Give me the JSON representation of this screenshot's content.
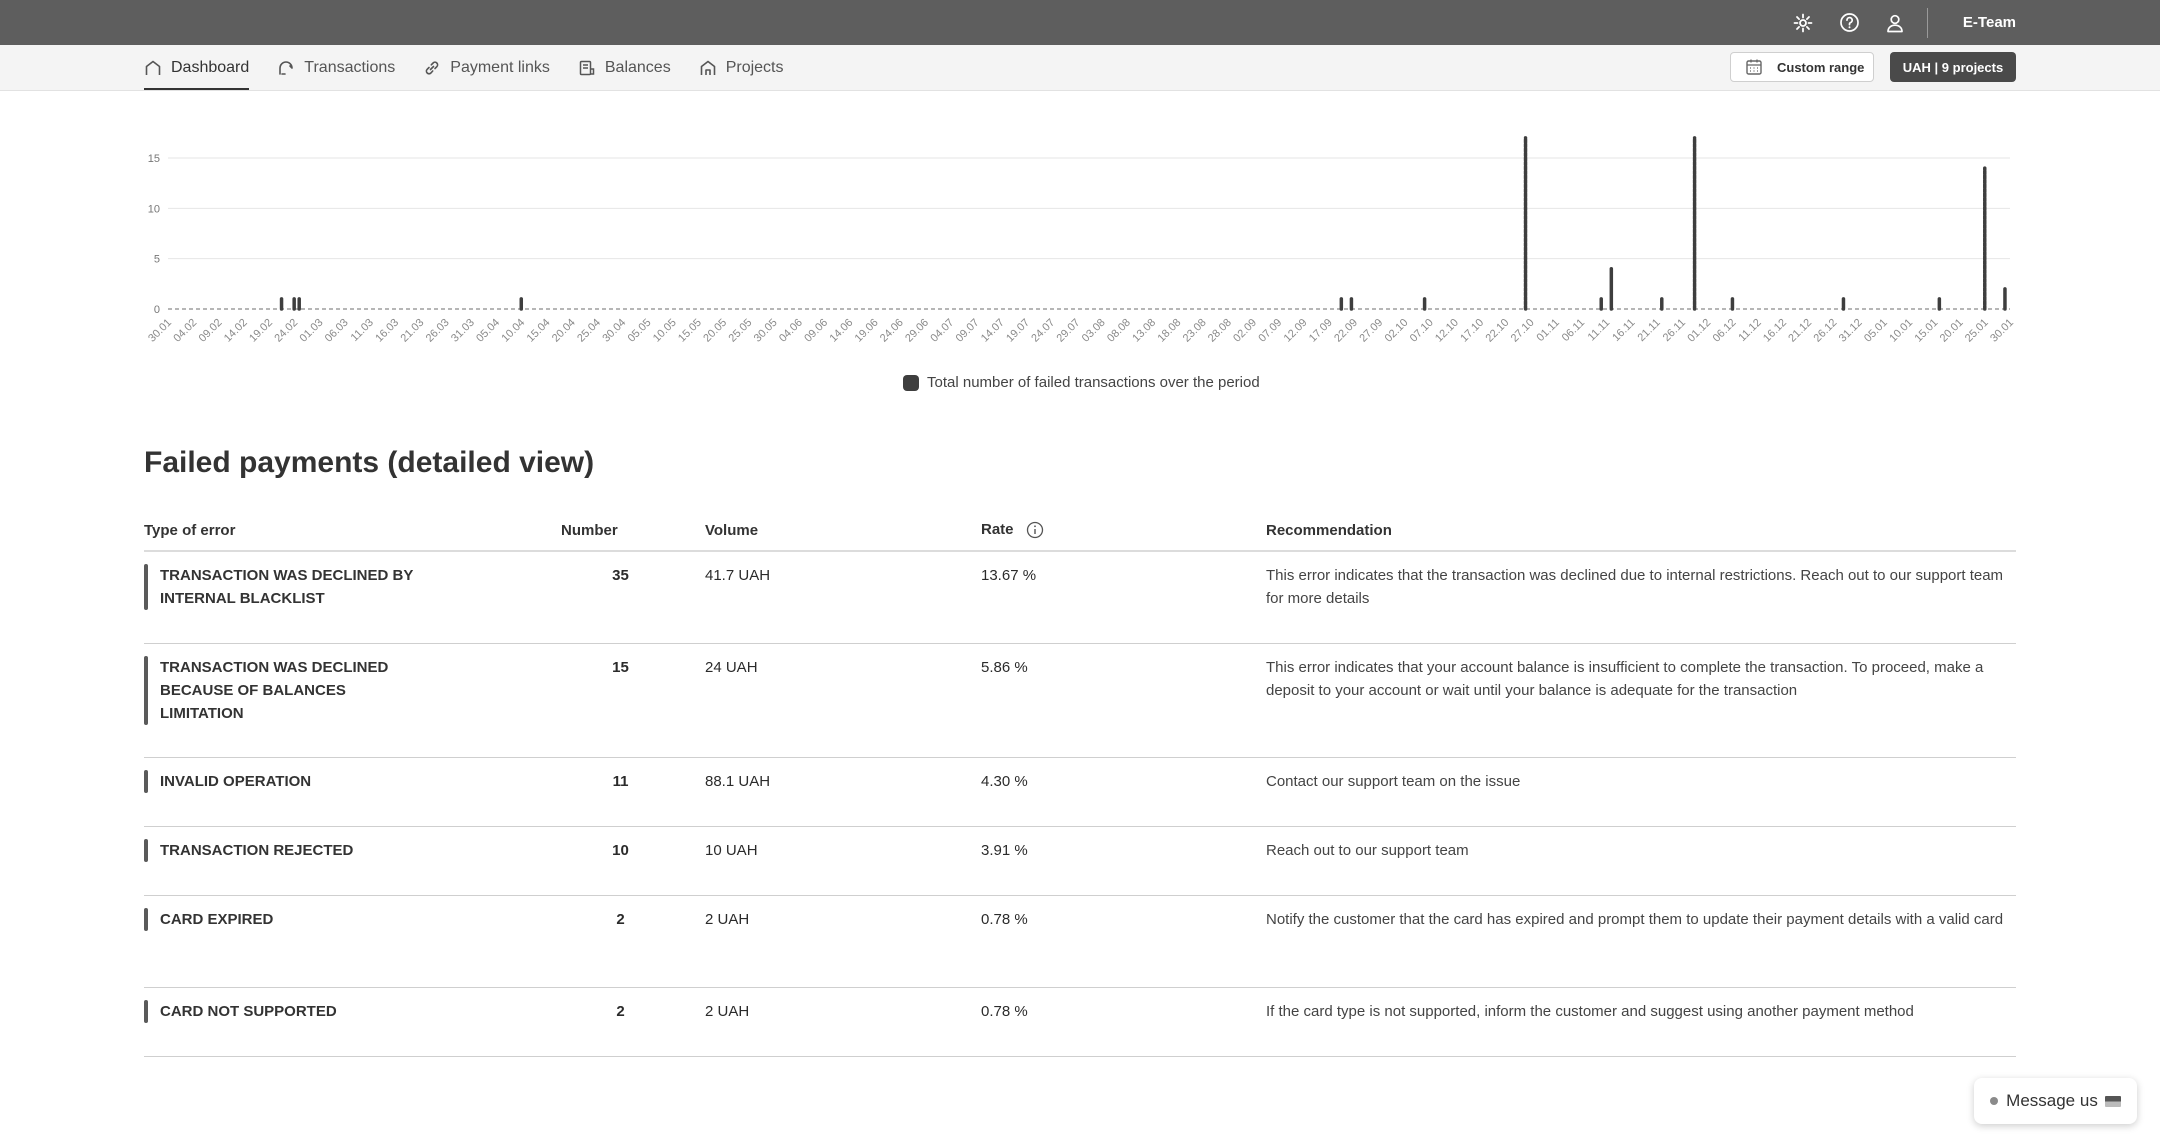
{
  "topbar": {
    "team": "E-Team",
    "icons": [
      "gear-icon",
      "help-icon",
      "user-icon"
    ]
  },
  "nav": {
    "items": [
      {
        "label": "Dashboard",
        "icon": "home-icon",
        "active": true
      },
      {
        "label": "Transactions",
        "icon": "transactions-icon"
      },
      {
        "label": "Payment links",
        "icon": "link-icon"
      },
      {
        "label": "Balances",
        "icon": "balance-icon"
      },
      {
        "label": "Projects",
        "icon": "projects-icon"
      }
    ],
    "custom_range": "Custom range",
    "projects": "UAH | 9 projects"
  },
  "chart_data": {
    "type": "bar",
    "yticks": [
      "0",
      "5",
      "10",
      "15"
    ],
    "ylim": [
      0,
      15
    ],
    "legend": "Total number of failed transactions over the period",
    "color": "#3e3e3e",
    "categories": [
      "30.01",
      "04.02",
      "09.02",
      "14.02",
      "19.02",
      "24.02",
      "01.03",
      "06.03",
      "11.03",
      "16.03",
      "21.03",
      "26.03",
      "31.03",
      "05.04",
      "10.04",
      "15.04",
      "20.04",
      "25.04",
      "30.04",
      "05.05",
      "10.05",
      "15.05",
      "20.05",
      "25.05",
      "30.05",
      "04.06",
      "09.06",
      "14.06",
      "19.06",
      "24.06",
      "29.06",
      "04.07",
      "09.07",
      "14.07",
      "19.07",
      "24.07",
      "29.07",
      "03.08",
      "08.08",
      "13.08",
      "18.08",
      "23.08",
      "28.08",
      "02.09",
      "07.09",
      "12.09",
      "17.09",
      "22.09",
      "27.09",
      "02.10",
      "07.10",
      "12.10",
      "17.10",
      "22.10",
      "27.10",
      "01.11",
      "06.11",
      "11.11",
      "16.11",
      "21.11",
      "26.11",
      "01.12",
      "06.12",
      "11.12",
      "16.12",
      "21.12",
      "26.12",
      "31.12",
      "05.01",
      "10.01",
      "15.01",
      "20.01",
      "25.01",
      "30.01"
    ],
    "bars": [
      {
        "x": 4.5,
        "value": 1
      },
      {
        "x": 5.0,
        "value": 1
      },
      {
        "x": 5.2,
        "value": 1
      },
      {
        "x": 14.0,
        "value": 1
      },
      {
        "x": 46.5,
        "value": 1
      },
      {
        "x": 46.9,
        "value": 1
      },
      {
        "x": 49.8,
        "value": 1
      },
      {
        "x": 53.8,
        "value": 17
      },
      {
        "x": 56.8,
        "value": 1
      },
      {
        "x": 57.2,
        "value": 4
      },
      {
        "x": 59.2,
        "value": 1
      },
      {
        "x": 60.5,
        "value": 17
      },
      {
        "x": 62.0,
        "value": 1
      },
      {
        "x": 66.4,
        "value": 1
      },
      {
        "x": 70.2,
        "value": 1
      },
      {
        "x": 72.0,
        "value": 14
      },
      {
        "x": 72.8,
        "value": 2
      }
    ]
  },
  "failed": {
    "title": "Failed payments (detailed view)",
    "headers": {
      "type": "Type of error",
      "number": "Number",
      "volume": "Volume",
      "rate": "Rate",
      "recommendation": "Recommendation"
    },
    "rows": [
      {
        "type": "TRANSACTION WAS DECLINED BY INTERNAL BLACKLIST",
        "number": "35",
        "volume": "41.7 UAH",
        "rate": "13.67 %",
        "rec": "This error indicates that the transaction was declined due to internal restrictions. Reach out to our support team for more details"
      },
      {
        "type": "TRANSACTION WAS DECLINED BECAUSE OF BALANCES LIMITATION",
        "number": "15",
        "volume": "24 UAH",
        "rate": "5.86 %",
        "rec": "This error indicates that your account balance is insufficient to complete the transaction. To proceed, make a deposit to your account or wait until your balance is adequate for the transaction"
      },
      {
        "type": "INVALID OPERATION",
        "number": "11",
        "volume": "88.1 UAH",
        "rate": "4.30 %",
        "rec": "Contact our support team on the issue"
      },
      {
        "type": "TRANSACTION REJECTED",
        "number": "10",
        "volume": "10 UAH",
        "rate": "3.91 %",
        "rec": "Reach out to our support team"
      },
      {
        "type": "CARD EXPIRED",
        "number": "2",
        "volume": "2 UAH",
        "rate": "0.78 %",
        "rec": "Notify the customer that the card has expired and prompt them to update their payment details with a valid card"
      },
      {
        "type": "CARD NOT SUPPORTED",
        "number": "2",
        "volume": "2 UAH",
        "rate": "0.78 %",
        "rec": "If the card type is not supported, inform the customer and suggest using another payment method"
      }
    ]
  },
  "message_button": "Message us"
}
